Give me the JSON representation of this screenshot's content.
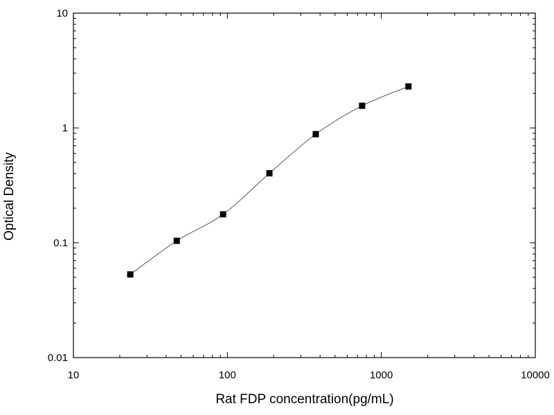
{
  "chart_data": {
    "type": "scatter",
    "xlabel": "Rat FDP concentration(pg/mL)",
    "ylabel": "Optical Density",
    "xscale": "log",
    "yscale": "log",
    "xlim": [
      10,
      10000
    ],
    "ylim": [
      0.01,
      10
    ],
    "x_ticks": [
      "10",
      "100",
      "1000",
      "10000"
    ],
    "y_ticks": [
      "0.01",
      "0.1",
      "1",
      "10"
    ],
    "grid": false,
    "legend": "none",
    "marker": "square",
    "fit_curve": true,
    "colors": {
      "marker": "#000000",
      "curve": "#555555",
      "axis": "#000000"
    },
    "series": [
      {
        "x": [
          23.4,
          46.9,
          93.8,
          187.5,
          375,
          750,
          1500
        ],
        "y": [
          0.053,
          0.104,
          0.177,
          0.403,
          0.883,
          1.56,
          2.3
        ]
      }
    ]
  }
}
